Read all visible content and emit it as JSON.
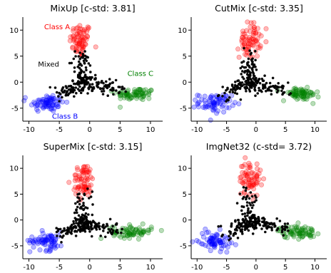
{
  "chart_data": [
    {
      "type": "scatter",
      "title": "MixUp [c-std: 3.81]",
      "xticks": [
        -10,
        -5,
        0,
        5,
        10
      ],
      "yticks": [
        -5,
        0,
        5,
        10
      ],
      "xlim": [
        -11,
        12
      ],
      "ylim": [
        -7.5,
        12.5
      ],
      "grid": false,
      "annotations": [
        {
          "text": "Class A",
          "x": -7.5,
          "y": 10.2,
          "color": "#ff0000"
        },
        {
          "text": "Mixed",
          "x": -8.5,
          "y": 3.0,
          "color": "#000000"
        },
        {
          "text": "Class C",
          "x": 6.2,
          "y": 1.2,
          "color": "#008000"
        },
        {
          "text": "Class B",
          "x": -6.2,
          "y": -7.0,
          "color": "#0000ff"
        }
      ],
      "series": [
        {
          "label": "Class A",
          "color": "#ff0000",
          "center": [
            -1.5,
            8.0
          ],
          "count": 70
        },
        {
          "label": "Class B",
          "color": "#0000ff",
          "center": [
            -7.0,
            -4.0
          ],
          "count": 70
        },
        {
          "label": "Class C",
          "color": "#008000",
          "center": [
            7.5,
            -2.3
          ],
          "count": 70
        },
        {
          "label": "Mixed",
          "color": "#000000",
          "center": [
            -1.0,
            0.0
          ],
          "count": 220
        }
      ]
    },
    {
      "type": "scatter",
      "title": "CutMix [c-std: 3.35]",
      "xticks": [
        -10,
        -5,
        0,
        5,
        10
      ],
      "yticks": [
        -5,
        0,
        5,
        10
      ],
      "xlim": [
        -11,
        12
      ],
      "ylim": [
        -7.5,
        12.5
      ],
      "grid": false,
      "annotations": [],
      "series": [
        {
          "label": "Class A",
          "color": "#ff0000",
          "center": [
            -1.0,
            8.0
          ],
          "count": 70
        },
        {
          "label": "Class B",
          "color": "#0000ff",
          "center": [
            -7.0,
            -4.0
          ],
          "count": 70
        },
        {
          "label": "Class C",
          "color": "#008000",
          "center": [
            7.5,
            -2.3
          ],
          "count": 70
        },
        {
          "label": "Mixed",
          "color": "#000000",
          "center": [
            -1.0,
            0.0
          ],
          "count": 220
        }
      ]
    },
    {
      "type": "scatter",
      "title": "SuperMix [c-std: 3.15]",
      "xticks": [
        -10,
        -5,
        0,
        5,
        10
      ],
      "yticks": [
        -5,
        0,
        5,
        10
      ],
      "xlim": [
        -11,
        12
      ],
      "ylim": [
        -7.5,
        12.5
      ],
      "grid": false,
      "annotations": [],
      "series": [
        {
          "label": "Class A",
          "color": "#ff0000",
          "center": [
            -1.0,
            7.5
          ],
          "count": 70
        },
        {
          "label": "Class B",
          "color": "#0000ff",
          "center": [
            -7.0,
            -4.0
          ],
          "count": 70
        },
        {
          "label": "Class C",
          "color": "#008000",
          "center": [
            7.0,
            -2.3
          ],
          "count": 70
        },
        {
          "label": "Mixed",
          "color": "#000000",
          "center": [
            -1.0,
            -1.0
          ],
          "count": 220
        }
      ]
    },
    {
      "type": "scatter",
      "title": "ImgNet32 (c-std= 3.72)",
      "xticks": [
        -10,
        -5,
        0,
        5,
        10
      ],
      "yticks": [
        -5,
        0,
        5,
        10
      ],
      "xlim": [
        -11,
        12
      ],
      "ylim": [
        -7.5,
        12.5
      ],
      "grid": false,
      "annotations": [],
      "series": [
        {
          "label": "Class A",
          "color": "#ff0000",
          "center": [
            -1.0,
            8.0
          ],
          "count": 70
        },
        {
          "label": "Class B",
          "color": "#0000ff",
          "center": [
            -7.0,
            -4.0
          ],
          "count": 70
        },
        {
          "label": "Class C",
          "color": "#008000",
          "center": [
            7.0,
            -2.3
          ],
          "count": 70
        },
        {
          "label": "Mixed",
          "color": "#000000",
          "center": [
            -1.0,
            -0.5
          ],
          "count": 220
        }
      ]
    }
  ]
}
